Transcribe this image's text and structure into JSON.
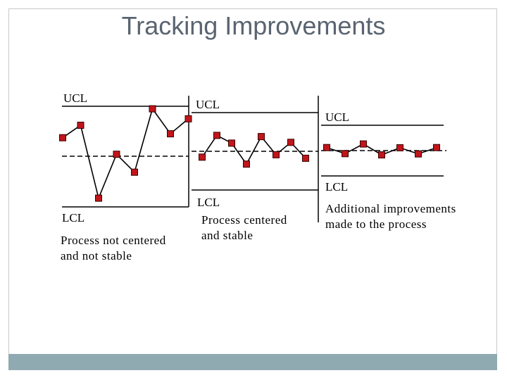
{
  "title": "Tracking Improvements",
  "colors": {
    "marker_fill": "#c0161b",
    "marker_stroke": "#3a0000",
    "footer": "#8faab0",
    "title": "#5a6470"
  },
  "panels": [
    {
      "ucl_label": "UCL",
      "lcl_label": "LCL",
      "caption_line1": "Process not centered",
      "caption_line2": "and not stable",
      "points": [
        {
          "x": 1,
          "y": 0.37
        },
        {
          "x": 2,
          "y": 0.62
        },
        {
          "x": 3,
          "y": -0.84
        },
        {
          "x": 4,
          "y": 0.04
        },
        {
          "x": 5,
          "y": -0.32
        },
        {
          "x": 6,
          "y": 0.95
        },
        {
          "x": 7,
          "y": 0.45
        },
        {
          "x": 8,
          "y": 0.75
        }
      ]
    },
    {
      "ucl_label": "UCL",
      "lcl_label": "LCL",
      "caption_line1": "Process centered",
      "caption_line2": "and stable",
      "points": [
        {
          "x": 1,
          "y": -0.15
        },
        {
          "x": 2,
          "y": 0.41
        },
        {
          "x": 3,
          "y": 0.21
        },
        {
          "x": 4,
          "y": -0.33
        },
        {
          "x": 5,
          "y": 0.38
        },
        {
          "x": 6,
          "y": -0.09
        },
        {
          "x": 7,
          "y": 0.23
        },
        {
          "x": 8,
          "y": -0.18
        }
      ]
    },
    {
      "ucl_label": "UCL",
      "lcl_label": "LCL",
      "caption_line1": "Additional improvements",
      "caption_line2": "made to the process",
      "points": [
        {
          "x": 1,
          "y": 0.12
        },
        {
          "x": 2,
          "y": -0.12
        },
        {
          "x": 3,
          "y": 0.26
        },
        {
          "x": 4,
          "y": -0.17
        },
        {
          "x": 5,
          "y": 0.11
        },
        {
          "x": 6,
          "y": -0.13
        },
        {
          "x": 7,
          "y": 0.12
        }
      ]
    }
  ]
}
